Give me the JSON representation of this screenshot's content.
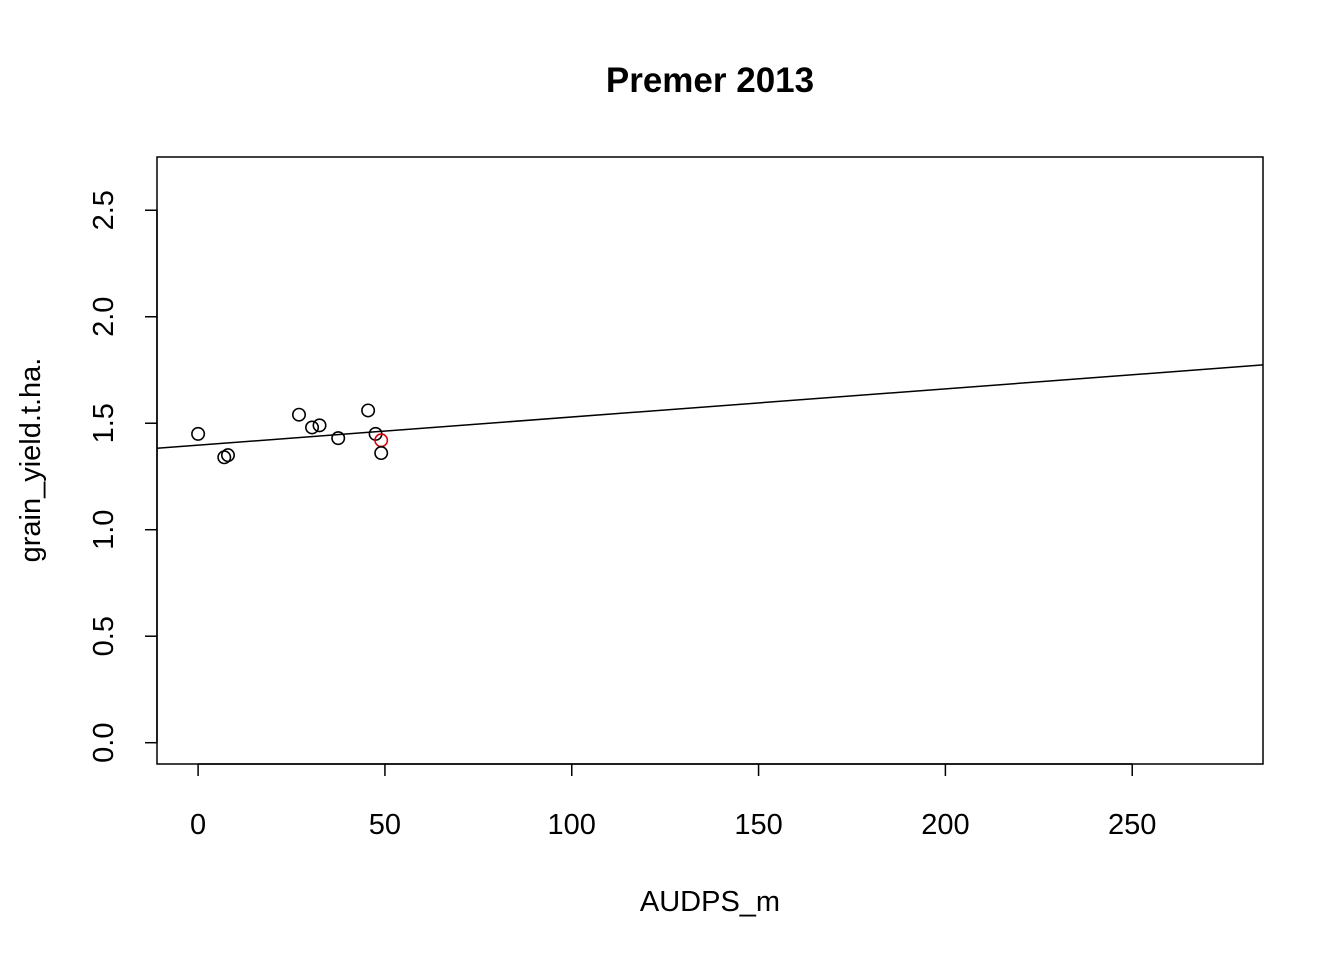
{
  "chart_data": {
    "type": "scatter",
    "title": "Premer 2013",
    "xlabel": "AUDPS_m",
    "ylabel": "grain_yield.t.ha.",
    "xlim": [
      -11,
      285
    ],
    "ylim": [
      -0.1,
      2.75
    ],
    "x_ticks": [
      0,
      50,
      100,
      150,
      200,
      250
    ],
    "y_ticks": [
      0.0,
      0.5,
      1.0,
      1.5,
      2.0,
      2.5
    ],
    "x_tick_labels": [
      "0",
      "50",
      "100",
      "150",
      "200",
      "250"
    ],
    "y_tick_labels": [
      "0.0",
      "0.5",
      "1.0",
      "1.5",
      "2.0",
      "2.5"
    ],
    "grid": false,
    "points": [
      {
        "x": 0,
        "y": 1.45,
        "color": "#000000"
      },
      {
        "x": 7,
        "y": 1.34,
        "color": "#000000"
      },
      {
        "x": 8,
        "y": 1.35,
        "color": "#000000"
      },
      {
        "x": 27,
        "y": 1.54,
        "color": "#000000"
      },
      {
        "x": 30.5,
        "y": 1.48,
        "color": "#000000"
      },
      {
        "x": 32.5,
        "y": 1.49,
        "color": "#000000"
      },
      {
        "x": 37.5,
        "y": 1.43,
        "color": "#000000"
      },
      {
        "x": 45.5,
        "y": 1.56,
        "color": "#000000"
      },
      {
        "x": 47.5,
        "y": 1.45,
        "color": "#000000"
      },
      {
        "x": 49,
        "y": 1.42,
        "color": "#dd0000"
      },
      {
        "x": 49,
        "y": 1.36,
        "color": "#000000"
      }
    ],
    "regression_line": {
      "intercept": 1.397,
      "slope": 0.001322,
      "color": "#000000"
    }
  }
}
